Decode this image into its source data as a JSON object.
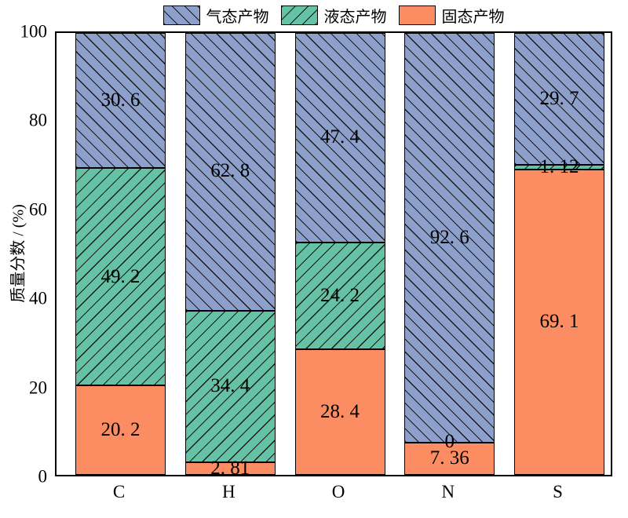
{
  "figure": {
    "ylabel": "质量分数 / (%)"
  },
  "chart_data": {
    "type": "bar",
    "subtype": "stacked_vertical",
    "title": "",
    "xlabel": "",
    "ylabel": "质量分数 / (%)",
    "ylim": [
      0,
      100
    ],
    "yticks": [
      "0",
      "20",
      "40",
      "60",
      "80",
      "100"
    ],
    "grid": false,
    "categories": [
      "C",
      "H",
      "O",
      "N",
      "S"
    ],
    "series": [
      {
        "name": "固态产物",
        "color": "#fc8d62",
        "hatch": "none",
        "values": [
          20.2,
          2.81,
          28.4,
          7.36,
          69.1
        ],
        "display_labels": [
          "20. 2",
          "2. 81",
          "28. 4",
          "7. 36",
          "69. 1"
        ]
      },
      {
        "name": "液态产物",
        "color": "#66c2a5",
        "hatch": "/",
        "values": [
          49.2,
          34.4,
          24.2,
          0,
          1.12
        ],
        "display_labels": [
          "49. 2",
          "34. 4",
          "24. 2",
          "0",
          "1. 12"
        ]
      },
      {
        "name": "气态产物",
        "color": "#8da0cb",
        "hatch": "\\",
        "values": [
          30.6,
          62.8,
          47.4,
          92.6,
          29.7
        ],
        "display_labels": [
          "30. 6",
          "62. 8",
          "47. 4",
          "92. 6",
          "29. 7"
        ]
      }
    ],
    "legend": {
      "position": "top-center",
      "entries": [
        "气态产物",
        "液态产物",
        "固态产物"
      ]
    },
    "hatch_line_color": "#1a1a1a",
    "edge_color": "#000000"
  }
}
